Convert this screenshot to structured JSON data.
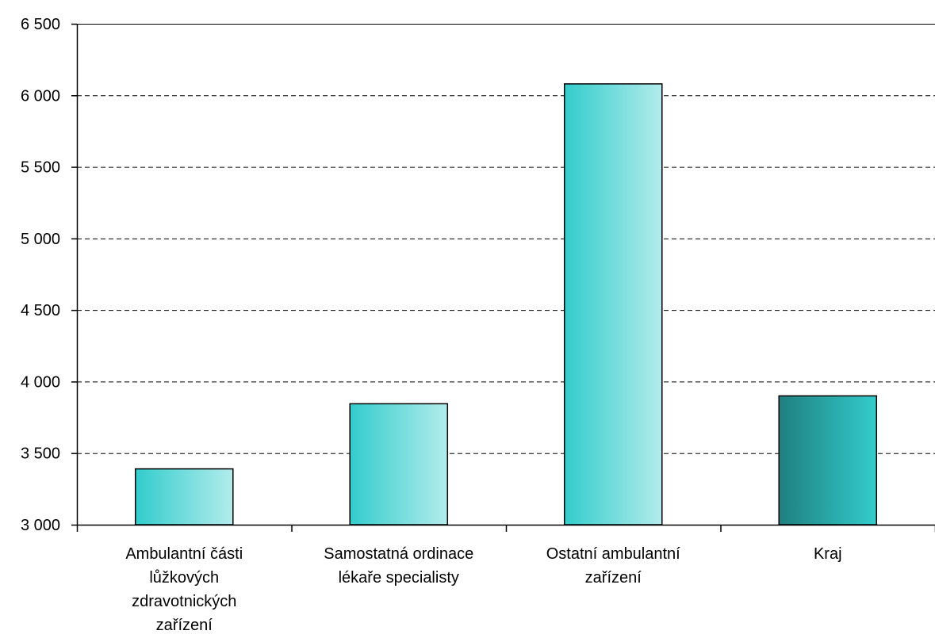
{
  "chart_data": {
    "type": "bar",
    "categories": [
      [
        "Ambulantní části",
        "lůžkových",
        "zdravotnických",
        "zařízení"
      ],
      [
        "Samostatná ordinace",
        "lékaře specialisty"
      ],
      [
        "Ostatní ambulantní",
        "zařízení"
      ],
      [
        "Kraj"
      ]
    ],
    "values": [
      3390,
      3845,
      6080,
      3900
    ],
    "ylim": [
      3000,
      6500
    ],
    "yticks": [
      3000,
      3500,
      4000,
      4500,
      5000,
      5500,
      6000,
      6500
    ],
    "ytick_labels": [
      "3 000",
      "3 500",
      "4 000",
      "4 500",
      "5 000",
      "5 500",
      "6 000",
      "6 500"
    ],
    "grid": true,
    "grid_style": "dashed",
    "legend": "none",
    "colors": {
      "bar_gradient": [
        "#33cccc",
        "#b3ecec"
      ],
      "highlight_gradient": [
        "#1f7f7f",
        "#33cccc"
      ],
      "highlight_index": 3,
      "bar_stroke": "#000000",
      "grid": "#000000",
      "axis": "#000000"
    }
  }
}
